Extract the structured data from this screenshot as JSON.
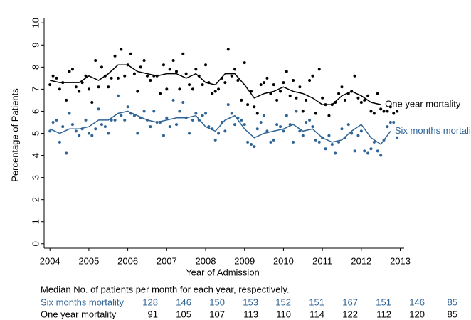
{
  "chart_data": {
    "type": "scatter",
    "xlabel": "Year of Admission",
    "ylabel": "Percentage of Patients",
    "xlim": [
      2003.85,
      2013.1
    ],
    "ylim": [
      -0.2,
      10.2
    ],
    "xticks": [
      2004,
      2005,
      2006,
      2007,
      2008,
      2009,
      2010,
      2011,
      2012,
      2013
    ],
    "yticks": [
      0,
      1,
      2,
      3,
      4,
      5,
      6,
      7,
      8,
      9,
      10
    ],
    "series": [
      {
        "mode": "markers",
        "color": "#000000",
        "x": [
          2004,
          2004.08,
          2004.17,
          2004.25,
          2004.33,
          2004.42,
          2004.5,
          2004.58,
          2004.67,
          2004.75,
          2004.83,
          2004.92,
          2005,
          2005.08,
          2005.17,
          2005.25,
          2005.33,
          2005.42,
          2005.5,
          2005.58,
          2005.67,
          2005.75,
          2005.83,
          2005.92,
          2006,
          2006.08,
          2006.17,
          2006.25,
          2006.33,
          2006.42,
          2006.5,
          2006.58,
          2006.67,
          2006.75,
          2006.83,
          2006.92,
          2007,
          2007.08,
          2007.17,
          2007.25,
          2007.33,
          2007.42,
          2007.5,
          2007.58,
          2007.67,
          2007.75,
          2007.83,
          2007.92,
          2008,
          2008.08,
          2008.17,
          2008.25,
          2008.33,
          2008.42,
          2008.5,
          2008.58,
          2008.67,
          2008.75,
          2008.83,
          2008.92,
          2009,
          2009.08,
          2009.17,
          2009.25,
          2009.33,
          2009.42,
          2009.5,
          2009.58,
          2009.67,
          2009.75,
          2009.83,
          2009.92,
          2010,
          2010.08,
          2010.17,
          2010.25,
          2010.33,
          2010.42,
          2010.5,
          2010.58,
          2010.67,
          2010.75,
          2010.83,
          2010.92,
          2011,
          2011.08,
          2011.17,
          2011.25,
          2011.33,
          2011.42,
          2011.5,
          2011.58,
          2011.67,
          2011.75,
          2011.83,
          2011.92,
          2012,
          2012.08,
          2012.17,
          2012.25,
          2012.33,
          2012.42,
          2012.5,
          2012.58,
          2012.67,
          2012.75,
          2012.83,
          2012.92
        ],
        "values": [
          7.2,
          7.6,
          7.5,
          7.0,
          7.3,
          6.5,
          7.8,
          7.9,
          7.1,
          6.9,
          7.3,
          7.6,
          7.0,
          6.4,
          8.3,
          7.1,
          8.0,
          7.6,
          7.1,
          7.5,
          8.5,
          7.5,
          8.8,
          7.6,
          8.1,
          8.6,
          7.7,
          6.9,
          8.0,
          8.3,
          7.6,
          7.4,
          7.6,
          7.6,
          6.8,
          8.1,
          7.0,
          7.9,
          8.3,
          7.8,
          7.0,
          8.6,
          7.7,
          7.2,
          7.0,
          7.9,
          7.6,
          7.2,
          8.1,
          7.3,
          6.8,
          6.9,
          7.0,
          7.5,
          7.3,
          8.8,
          7.6,
          7.9,
          7.4,
          6.5,
          8.2,
          6.3,
          6.9,
          6.2,
          5.9,
          7.2,
          7.3,
          7.5,
          6.8,
          7.2,
          6.5,
          6.9,
          7.3,
          7.8,
          6.7,
          7.4,
          6.6,
          7.1,
          6.0,
          6.5,
          7.4,
          7.6,
          5.9,
          7.9,
          6.6,
          6.3,
          5.8,
          6.3,
          6.4,
          6.8,
          7.1,
          6.5,
          6.8,
          6.9,
          7.6,
          6.6,
          6.4,
          6.5,
          6.7,
          6.0,
          5.9,
          6.8,
          6.1,
          6.0,
          6.0,
          6.2,
          5.9,
          6.0
        ]
      },
      {
        "mode": "markers",
        "color": "#2f6496",
        "x": [
          2004,
          2004.08,
          2004.17,
          2004.25,
          2004.33,
          2004.42,
          2004.5,
          2004.58,
          2004.67,
          2004.75,
          2004.83,
          2004.92,
          2005,
          2005.08,
          2005.17,
          2005.25,
          2005.33,
          2005.42,
          2005.5,
          2005.58,
          2005.67,
          2005.75,
          2005.83,
          2005.92,
          2006,
          2006.08,
          2006.17,
          2006.25,
          2006.33,
          2006.42,
          2006.5,
          2006.58,
          2006.67,
          2006.75,
          2006.83,
          2006.92,
          2007,
          2007.08,
          2007.17,
          2007.25,
          2007.33,
          2007.42,
          2007.5,
          2007.58,
          2007.67,
          2007.75,
          2007.83,
          2007.92,
          2008,
          2008.08,
          2008.17,
          2008.25,
          2008.33,
          2008.42,
          2008.5,
          2008.58,
          2008.67,
          2008.75,
          2008.83,
          2008.92,
          2009,
          2009.08,
          2009.17,
          2009.25,
          2009.33,
          2009.42,
          2009.5,
          2009.58,
          2009.67,
          2009.75,
          2009.83,
          2009.92,
          2010,
          2010.08,
          2010.17,
          2010.25,
          2010.33,
          2010.42,
          2010.5,
          2010.58,
          2010.67,
          2010.75,
          2010.83,
          2010.92,
          2011,
          2011.08,
          2011.17,
          2011.25,
          2011.33,
          2011.42,
          2011.5,
          2011.58,
          2011.67,
          2011.75,
          2011.83,
          2011.92,
          2012,
          2012.08,
          2012.17,
          2012.25,
          2012.33,
          2012.42,
          2012.5,
          2012.58,
          2012.67,
          2012.75,
          2012.83,
          2012.92
        ],
        "values": [
          5.1,
          5.5,
          5.6,
          4.6,
          5.3,
          4.1,
          5.9,
          5.4,
          5.1,
          4.9,
          5.2,
          5.6,
          5.0,
          4.9,
          5.2,
          6.1,
          5.4,
          5.3,
          5.0,
          5.6,
          5.6,
          6.7,
          5.8,
          5.6,
          6.2,
          5.9,
          5.8,
          5.0,
          5.7,
          6.0,
          5.6,
          5.3,
          6.0,
          5.5,
          5.5,
          4.9,
          5.7,
          5.3,
          6.5,
          5.4,
          6.0,
          6.4,
          5.7,
          5.0,
          5.6,
          5.9,
          5.6,
          5.8,
          5.9,
          5.3,
          5.2,
          4.7,
          5.0,
          5.5,
          5.1,
          6.3,
          5.9,
          5.4,
          5.7,
          5.6,
          5.4,
          4.6,
          4.5,
          4.4,
          5.2,
          5.5,
          5.8,
          5.1,
          4.6,
          4.7,
          5.4,
          5.3,
          5.1,
          5.8,
          5.4,
          4.6,
          6.0,
          5.1,
          4.9,
          5.5,
          5.6,
          5.3,
          4.7,
          4.6,
          4.8,
          4.3,
          4.9,
          4.5,
          4.1,
          4.6,
          5.2,
          4.8,
          5.4,
          5.0,
          4.2,
          4.9,
          5.1,
          4.2,
          4.1,
          4.3,
          4.6,
          4.2,
          4.0,
          4.7,
          5.3,
          5.5,
          5.5,
          4.8
        ]
      },
      {
        "mode": "line",
        "name": "One year mortality",
        "color": "#000000",
        "x": [
          2004,
          2004.25,
          2004.5,
          2004.75,
          2005,
          2005.25,
          2005.5,
          2005.75,
          2006,
          2006.25,
          2006.5,
          2006.75,
          2007,
          2007.25,
          2007.5,
          2007.75,
          2008,
          2008.25,
          2008.5,
          2008.75,
          2009,
          2009.25,
          2009.5,
          2009.75,
          2010,
          2010.25,
          2010.5,
          2010.75,
          2011,
          2011.25,
          2011.5,
          2011.75,
          2012,
          2012.25,
          2012.5
        ],
        "values": [
          7.4,
          7.3,
          7.3,
          7.3,
          7.6,
          7.4,
          7.7,
          8.1,
          8.1,
          7.8,
          7.7,
          7.6,
          7.7,
          7.7,
          7.5,
          7.7,
          7.3,
          7.2,
          7.7,
          7.7,
          7.2,
          6.6,
          6.8,
          6.9,
          7.1,
          6.9,
          6.8,
          6.6,
          6.3,
          6.3,
          6.7,
          6.9,
          6.7,
          6.4,
          6.3
        ]
      },
      {
        "mode": "line",
        "name": "Six months mortality",
        "color": "#2f6496",
        "x": [
          2004,
          2004.25,
          2004.5,
          2004.75,
          2005,
          2005.25,
          2005.5,
          2005.75,
          2006,
          2006.25,
          2006.5,
          2006.75,
          2007,
          2007.25,
          2007.5,
          2007.75,
          2008,
          2008.25,
          2008.5,
          2008.75,
          2009,
          2009.25,
          2009.5,
          2009.75,
          2010,
          2010.25,
          2010.5,
          2010.75,
          2011,
          2011.25,
          2011.5,
          2011.75,
          2012,
          2012.25,
          2012.5,
          2012.75
        ],
        "values": [
          5.2,
          5.0,
          5.2,
          5.2,
          5.3,
          5.6,
          5.6,
          5.9,
          6.0,
          5.8,
          5.6,
          5.5,
          5.6,
          5.7,
          5.7,
          5.8,
          5.3,
          5.1,
          5.6,
          5.8,
          5.2,
          4.8,
          5.0,
          5.1,
          5.2,
          5.4,
          5.1,
          5.2,
          4.8,
          4.6,
          4.7,
          5.1,
          5.4,
          4.8,
          4.5,
          5.1
        ]
      }
    ]
  },
  "table": {
    "title": "Median No. of patients per month for each year, respectively.",
    "rows": [
      {
        "label": "Six months mortality",
        "color": "#2f6496",
        "values": [
          "128",
          "146",
          "150",
          "153",
          "152",
          "151",
          "167",
          "151",
          "146",
          "85"
        ]
      },
      {
        "label": "One year mortality",
        "color": "#000000",
        "values": [
          "91",
          "105",
          "107",
          "113",
          "110",
          "114",
          "122",
          "112",
          "120",
          "85"
        ]
      }
    ]
  }
}
